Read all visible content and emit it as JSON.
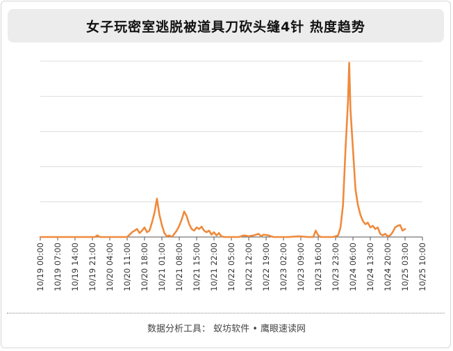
{
  "header": {
    "title": "女子玩密室逃脱被道具刀砍头缝4针 热度趋势"
  },
  "footer": {
    "text": "数据分析工具：  蚁坊软件 • 鹰眼速读网"
  },
  "colors": {
    "line": "#ef8a3c",
    "grid": "#dcdcdc",
    "axis": "#555555",
    "title_bg": "#ececec"
  },
  "chart_data": {
    "type": "line",
    "grid": true,
    "y_axis_labels_shown": false,
    "ylim": [
      0,
      220
    ],
    "x_tick_labels": [
      "10/19 00:00",
      "10/19 07:00",
      "10/19 14:00",
      "10/19 21:00",
      "10/20 04:00",
      "10/20 11:00",
      "10/20 18:00",
      "10/21 01:00",
      "10/21 08:00",
      "10/21 15:00",
      "10/21 22:00",
      "10/22 05:00",
      "10/22 12:00",
      "10/22 19:00",
      "10/23 02:00",
      "10/23 09:00",
      "10/23 16:00",
      "10/23 23:00",
      "10/24 06:00",
      "10/24 13:00",
      "10/24 20:00",
      "10/25 03:00",
      "10/25 10:00"
    ],
    "x_start_hour": 0,
    "x_end_hour": 154,
    "series": [
      {
        "points": [
          [
            0,
            0
          ],
          [
            8,
            0
          ],
          [
            16,
            0
          ],
          [
            22,
            0
          ],
          [
            23,
            2
          ],
          [
            24,
            0
          ],
          [
            30,
            0
          ],
          [
            35,
            0
          ],
          [
            36,
            3
          ],
          [
            37,
            6
          ],
          [
            38,
            8
          ],
          [
            39,
            10
          ],
          [
            40,
            5
          ],
          [
            41,
            8
          ],
          [
            42,
            12
          ],
          [
            43,
            6
          ],
          [
            44,
            8
          ],
          [
            45,
            18
          ],
          [
            46,
            30
          ],
          [
            47,
            48
          ],
          [
            48,
            28
          ],
          [
            49,
            15
          ],
          [
            50,
            5
          ],
          [
            51,
            1
          ],
          [
            52,
            2
          ],
          [
            53,
            0
          ],
          [
            54,
            4
          ],
          [
            55,
            8
          ],
          [
            56,
            14
          ],
          [
            57,
            22
          ],
          [
            58,
            32
          ],
          [
            59,
            26
          ],
          [
            60,
            16
          ],
          [
            61,
            10
          ],
          [
            62,
            8
          ],
          [
            63,
            12
          ],
          [
            64,
            10
          ],
          [
            65,
            13
          ],
          [
            66,
            8
          ],
          [
            67,
            6
          ],
          [
            68,
            8
          ],
          [
            69,
            3
          ],
          [
            70,
            6
          ],
          [
            71,
            2
          ],
          [
            72,
            5
          ],
          [
            73,
            1
          ],
          [
            74,
            0
          ],
          [
            80,
            0
          ],
          [
            82,
            2
          ],
          [
            84,
            1
          ],
          [
            86,
            2
          ],
          [
            88,
            4
          ],
          [
            89,
            1
          ],
          [
            90,
            3
          ],
          [
            92,
            2
          ],
          [
            93,
            1
          ],
          [
            94,
            0
          ],
          [
            100,
            0
          ],
          [
            104,
            1
          ],
          [
            108,
            0
          ],
          [
            110,
            0
          ],
          [
            111,
            8
          ],
          [
            112,
            2
          ],
          [
            113,
            0
          ],
          [
            118,
            0
          ],
          [
            120,
            2
          ],
          [
            121,
            12
          ],
          [
            122,
            40
          ],
          [
            123,
            110
          ],
          [
            124,
            170
          ],
          [
            124.5,
            218
          ],
          [
            125,
            160
          ],
          [
            126,
            110
          ],
          [
            127,
            60
          ],
          [
            128,
            40
          ],
          [
            129,
            28
          ],
          [
            130,
            20
          ],
          [
            131,
            16
          ],
          [
            132,
            18
          ],
          [
            133,
            12
          ],
          [
            134,
            14
          ],
          [
            135,
            10
          ],
          [
            136,
            12
          ],
          [
            137,
            4
          ],
          [
            138,
            2
          ],
          [
            139,
            4
          ],
          [
            140,
            1
          ],
          [
            141,
            2
          ],
          [
            142,
            6
          ],
          [
            143,
            12
          ],
          [
            144,
            14
          ],
          [
            145,
            15
          ],
          [
            146,
            8
          ],
          [
            147,
            10
          ]
        ]
      }
    ]
  }
}
